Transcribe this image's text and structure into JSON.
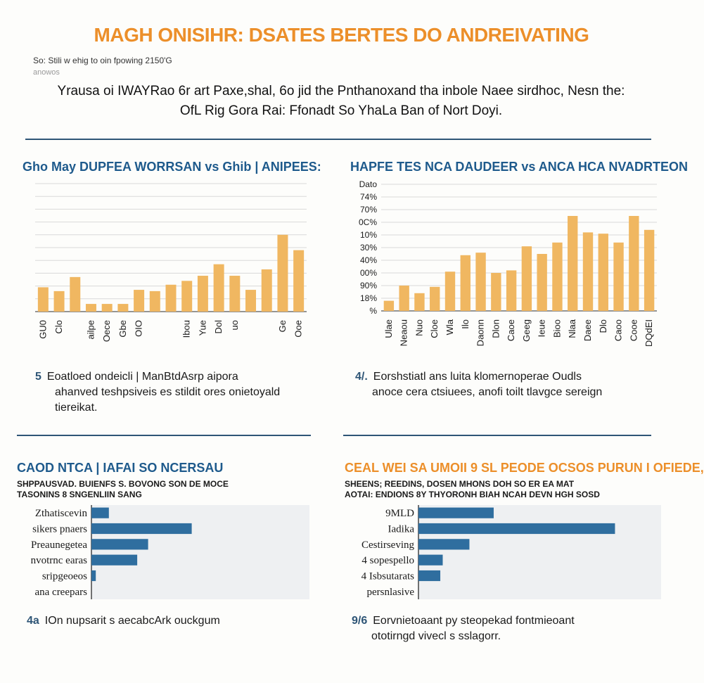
{
  "header": {
    "title": "MAGH ONISIHR: DSATES BERTES DO ANDREIVATING",
    "meta_line1": "So: Stili w ehig to oin fpowing 2150'G",
    "meta_line2": "anowos",
    "intro_line1": "Yrausa oi IWAYRao 6r art Paxe,shal, 6o jid the Pnthanoxand tha inbole Naee sirdhoc, Nesn the:",
    "intro_line2": "OfL Rig Gora Rai: Ffonadt So YhaLa Ban of Nort Doyi."
  },
  "colors": {
    "bar_orange": "#f0b761",
    "bar_blue": "#2f6e9f",
    "title_orange": "#ec8f2a",
    "title_blue": "#1e5a8c",
    "rule": "#2e5576",
    "grid": "#d9d9d9",
    "panel_bg": "#eef0f2"
  },
  "chart_data": [
    {
      "type": "bar",
      "title": "Gho May DUPFEA WORRSAN vs Ghib | ANIPEES:",
      "categories": [
        "GU0",
        "Clo",
        "",
        "ailpe",
        "Oece",
        "Gbe",
        "OIO",
        "",
        "",
        "Ibou",
        "Yue",
        "Dol",
        "uo",
        "",
        "",
        "Ge",
        "Ooe"
      ],
      "values": [
        19,
        16,
        27,
        6,
        6,
        6,
        17,
        16,
        21,
        24,
        28,
        37,
        28,
        17,
        33,
        60,
        48
      ],
      "ylim": [
        0,
        100
      ],
      "grid": true,
      "note_number": "5",
      "note_line1": "Eoatloed ondeicli | ManBtdAsrp aipora",
      "note_line2": "ahanved teshpsiveis es stildit ores onietoyald",
      "note_line3": "tiereikat."
    },
    {
      "type": "bar",
      "title": "HAPFE TES NCA DAUDEER vs ANCA HCA NVADRTEON",
      "categories": [
        "Ulae",
        "Neaou",
        "Nuo",
        "Cloe",
        "Wla",
        "Ilo",
        "Daonn",
        "Dlon",
        "Caoe",
        "Geeg",
        "Ieue",
        "Bioo",
        "Nlaa",
        "Daee",
        "Dlo",
        "Caoo",
        "Cooe",
        "DQdEI"
      ],
      "values": [
        8,
        20,
        14,
        19,
        31,
        44,
        46,
        30,
        32,
        51,
        45,
        54,
        75,
        62,
        61,
        54,
        75,
        64
      ],
      "y_ticks": [
        "%",
        "18%",
        "90%",
        "00%",
        "40%",
        "30%",
        "10%",
        "0C%",
        "70%",
        "74%",
        "Dato"
      ],
      "ylim": [
        0,
        100
      ],
      "grid": true,
      "note_number": "4/.",
      "note_line1": "Eorshstiatl ans luita klomernoperae Oudls",
      "note_line2": "anoce cera ctsiuees, anofi toilt tlavgce sereign"
    },
    {
      "type": "bar",
      "orientation": "horizontal",
      "title": "CAOD NTCA | IAFAI SO NCERSAU",
      "subtitle_line1": "SHPPAUSVAD. BUIENFS S. BOVONG SON DE MOCE",
      "subtitle_line2": "TASONINS 8 SNGENLIIN SANG",
      "categories": [
        "Zthatiscevin",
        "sikers pnaers",
        "Preaunegetea",
        "nvotrnc earas",
        "sripgeoeos",
        "ana creepars"
      ],
      "values": [
        8,
        46,
        26,
        21,
        2,
        0
      ],
      "xlim": [
        0,
        100
      ],
      "note_number": "4a",
      "note_line1": "IOn nupsarit s aecabcArk ouckgum"
    },
    {
      "type": "bar",
      "orientation": "horizontal",
      "title": "CEAL WEI SA UMOII 9 SL PEODE OCSOS PURUN I OFIEDE,",
      "subtitle_line1": "SHEENS; REEDINS, DOSEN MHONS DOH SO ER EA MAT",
      "subtitle_line2": "AOTAI: ENDIONS 8Y THYORONH BIAH NCAH DEVN HGH SOSD",
      "categories": [
        "9MLD",
        "Iadika",
        "Cestirseving",
        "4 sopespello",
        "4 Isbsutarats",
        "persnlasive"
      ],
      "values": [
        31,
        81,
        21,
        10,
        9,
        0
      ],
      "xlim": [
        0,
        100
      ],
      "note_number": "9/6",
      "note_line1": "Eorvnietoaant py steopekad fontmieoant",
      "note_line2": "ototirngd vivecl s sslagorr."
    }
  ]
}
